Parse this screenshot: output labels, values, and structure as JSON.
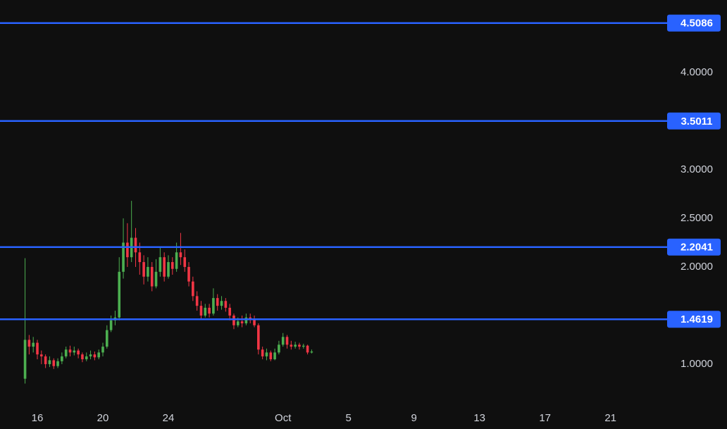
{
  "chart_data": {
    "type": "candlestick",
    "x": [
      15.25,
      15.5,
      15.75,
      16,
      16.25,
      16.5,
      16.75,
      17,
      17.25,
      17.5,
      17.75,
      18,
      18.25,
      18.5,
      18.75,
      19,
      19.25,
      19.5,
      19.75,
      20,
      20.25,
      20.5,
      20.75,
      21,
      21.25,
      21.5,
      21.75,
      22,
      22.25,
      22.5,
      22.75,
      23,
      23.25,
      23.5,
      23.75,
      24,
      24.25,
      24.5,
      24.75,
      25,
      25.25,
      25.5,
      25.75,
      26,
      26.25,
      26.5,
      26.75,
      27,
      27.25,
      27.5,
      27.75,
      28,
      28.25,
      28.5,
      28.75,
      29,
      29.25,
      29.5,
      29.75,
      30,
      30.25,
      30.5,
      30.75,
      31,
      31.25,
      31.5,
      31.75,
      32,
      32.25,
      32.5,
      32.75
    ],
    "open": [
      0.85,
      1.25,
      1.18,
      1.22,
      1.1,
      1.08,
      1.0,
      1.04,
      0.98,
      1.03,
      1.08,
      1.15,
      1.12,
      1.14,
      1.1,
      1.05,
      1.08,
      1.1,
      1.07,
      1.12,
      1.18,
      1.35,
      1.45,
      1.48,
      1.95,
      2.25,
      2.1,
      2.3,
      2.15,
      2.05,
      1.9,
      2.0,
      1.8,
      1.95,
      2.1,
      1.9,
      2.05,
      1.98,
      2.15,
      2.1,
      2.0,
      1.85,
      1.7,
      1.6,
      1.5,
      1.58,
      1.52,
      1.68,
      1.6,
      1.65,
      1.58,
      1.5,
      1.4,
      1.44,
      1.42,
      1.48,
      1.46,
      1.4,
      1.15,
      1.08,
      1.12,
      1.05,
      1.12,
      1.2,
      1.28,
      1.2,
      1.18,
      1.2,
      1.18,
      1.19,
      1.12
    ],
    "high": [
      2.09,
      1.3,
      1.28,
      1.25,
      1.14,
      1.1,
      1.08,
      1.06,
      1.06,
      1.12,
      1.18,
      1.19,
      1.18,
      1.16,
      1.12,
      1.12,
      1.14,
      1.13,
      1.15,
      1.22,
      1.4,
      1.5,
      1.55,
      2.1,
      2.5,
      2.45,
      2.68,
      2.4,
      2.25,
      2.12,
      2.1,
      2.05,
      2.08,
      2.2,
      2.15,
      2.12,
      2.1,
      2.25,
      2.35,
      2.18,
      2.05,
      1.9,
      1.75,
      1.65,
      1.62,
      1.62,
      1.78,
      1.72,
      1.7,
      1.68,
      1.62,
      1.52,
      1.48,
      1.5,
      1.52,
      1.52,
      1.5,
      1.42,
      1.18,
      1.16,
      1.14,
      1.16,
      1.24,
      1.32,
      1.3,
      1.24,
      1.23,
      1.22,
      1.21,
      1.2,
      1.15
    ],
    "low": [
      0.8,
      1.1,
      1.12,
      1.05,
      1.0,
      0.96,
      0.97,
      0.95,
      0.96,
      1.0,
      1.06,
      1.08,
      1.09,
      1.06,
      1.02,
      1.03,
      1.05,
      1.04,
      1.05,
      1.08,
      1.16,
      1.33,
      1.4,
      1.45,
      1.88,
      2.0,
      2.05,
      2.0,
      1.92,
      1.82,
      1.85,
      1.75,
      1.78,
      1.9,
      1.85,
      1.88,
      1.92,
      1.95,
      2.02,
      1.95,
      1.8,
      1.65,
      1.55,
      1.46,
      1.48,
      1.48,
      1.5,
      1.55,
      1.56,
      1.54,
      1.45,
      1.36,
      1.38,
      1.38,
      1.4,
      1.42,
      1.38,
      1.1,
      1.05,
      1.04,
      1.03,
      1.04,
      1.1,
      1.18,
      1.16,
      1.15,
      1.16,
      1.15,
      1.16,
      1.1,
      1.11
    ],
    "close": [
      1.25,
      1.18,
      1.22,
      1.1,
      1.08,
      1.0,
      1.04,
      0.98,
      1.03,
      1.08,
      1.15,
      1.12,
      1.14,
      1.1,
      1.05,
      1.08,
      1.1,
      1.07,
      1.12,
      1.18,
      1.35,
      1.45,
      1.48,
      1.95,
      2.25,
      2.1,
      2.3,
      2.15,
      2.05,
      1.9,
      2.0,
      1.8,
      1.95,
      2.1,
      1.9,
      2.05,
      1.98,
      2.15,
      2.1,
      2.0,
      1.85,
      1.7,
      1.6,
      1.5,
      1.58,
      1.52,
      1.68,
      1.6,
      1.65,
      1.58,
      1.5,
      1.4,
      1.44,
      1.42,
      1.48,
      1.46,
      1.4,
      1.15,
      1.08,
      1.12,
      1.05,
      1.12,
      1.2,
      1.28,
      1.2,
      1.18,
      1.2,
      1.18,
      1.19,
      1.12,
      1.13
    ],
    "up_color": "#4caf50",
    "down_color": "#f23645",
    "xlim": [
      13.72,
      54.37
    ],
    "ylim": [
      0.543,
      4.746
    ],
    "xticks": [
      16,
      20,
      24,
      {
        "value": 31,
        "label": "Oct"
      },
      {
        "value": 35,
        "label": "5"
      },
      {
        "value": 39,
        "label": "9"
      },
      {
        "value": 43,
        "label": "13"
      },
      {
        "value": 47,
        "label": "17"
      },
      {
        "value": 51,
        "label": "21"
      }
    ],
    "yticks": [
      {
        "value": 1,
        "label": "1.0000"
      },
      {
        "value": 2,
        "label": "2.0000"
      },
      {
        "value": 2.5,
        "label": "2.5000"
      },
      {
        "value": 3,
        "label": "3.0000"
      },
      {
        "value": 4,
        "label": "4.0000"
      }
    ],
    "hlines": [
      4.5086,
      3.5011,
      2.2041,
      1.4619
    ],
    "hline_color": "#2962ff"
  }
}
